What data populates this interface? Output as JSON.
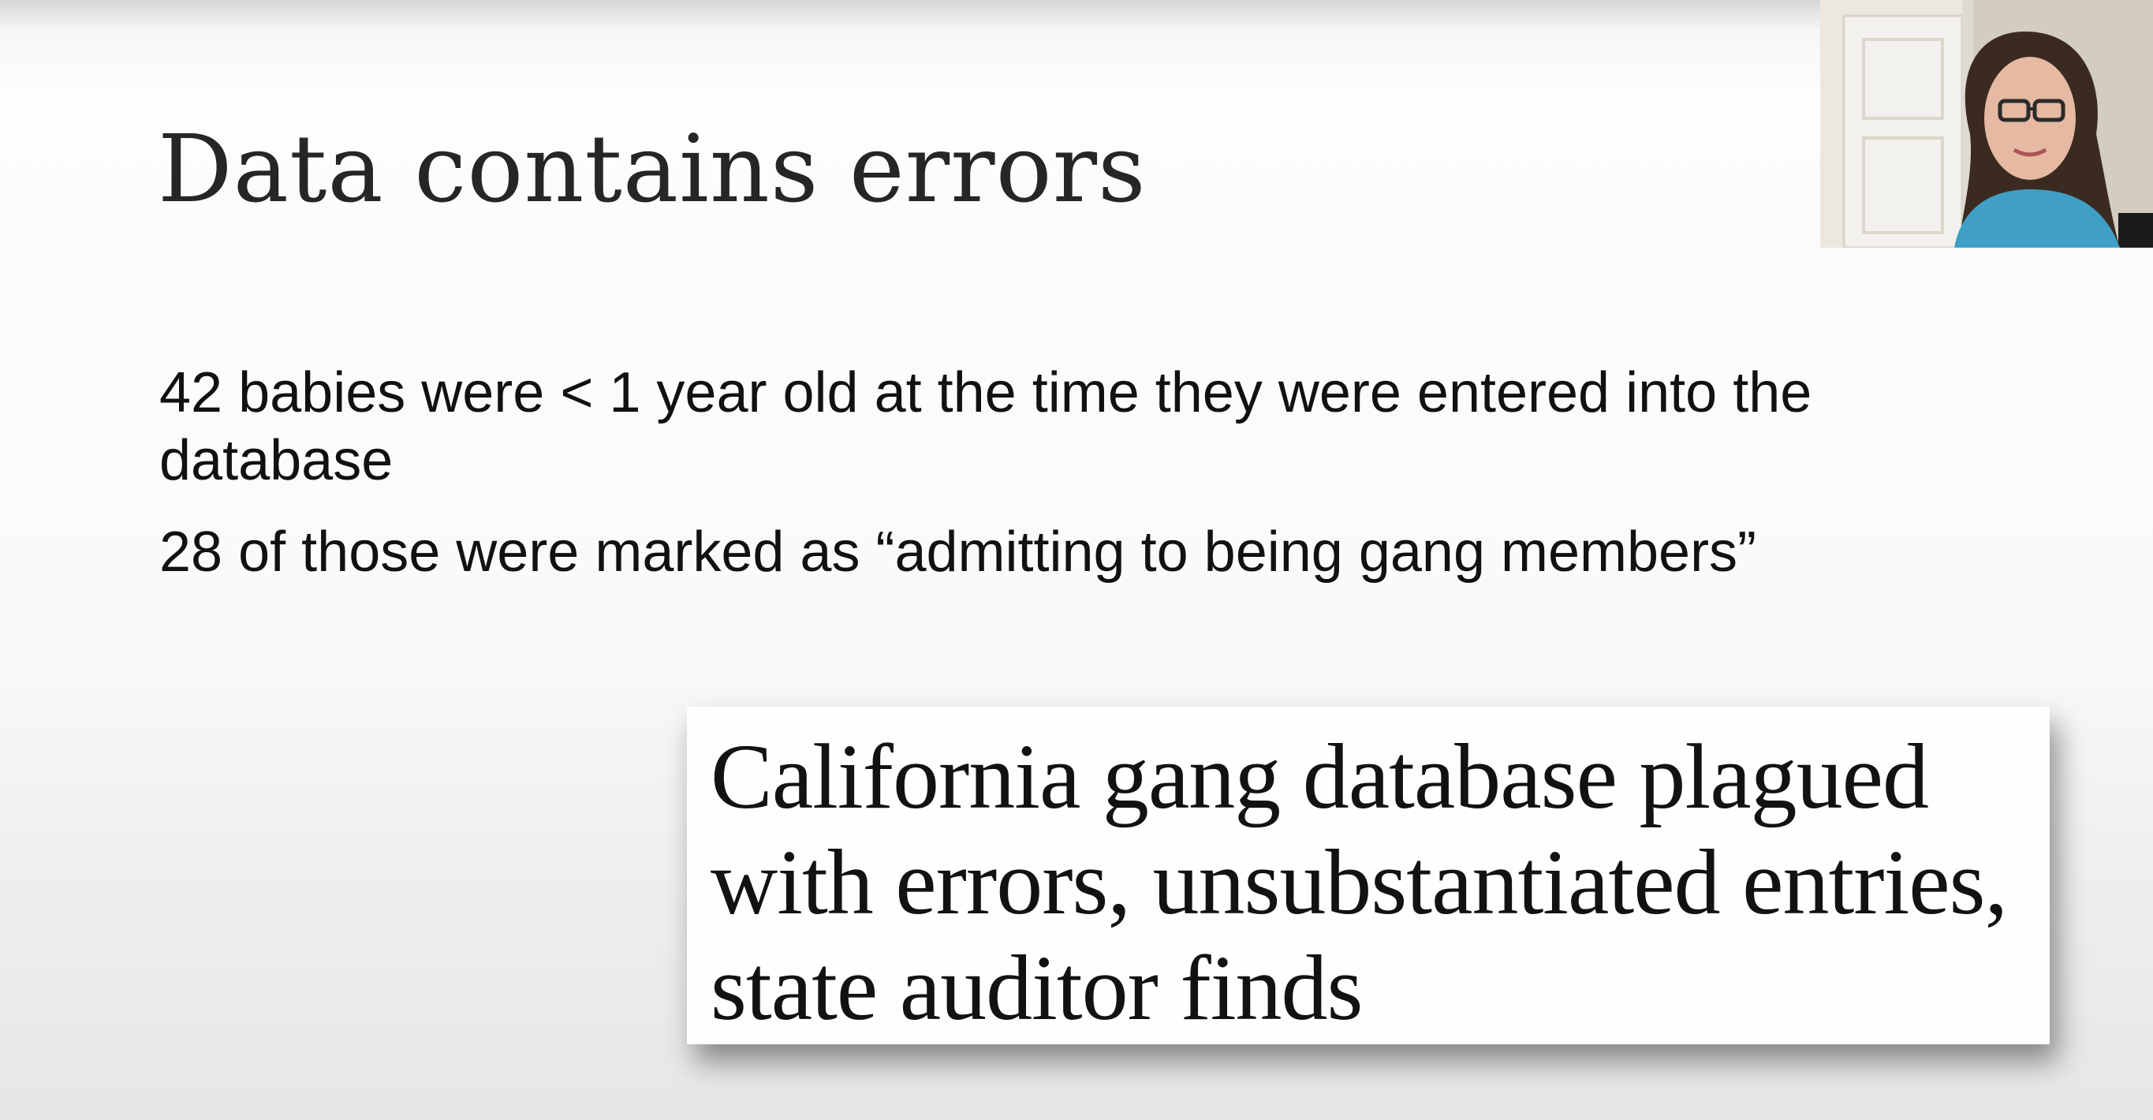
{
  "slide": {
    "title": "Data contains errors",
    "bullets": [
      "42 babies were < 1 year old at the time they were entered into the database",
      "28 of those were marked as “admitting to being gang members”"
    ]
  },
  "headline": {
    "text": "California gang database plagued with errors, unsubstantiated entries, state auditor finds"
  },
  "webcam": {
    "description_icon": "presenter-video"
  }
}
